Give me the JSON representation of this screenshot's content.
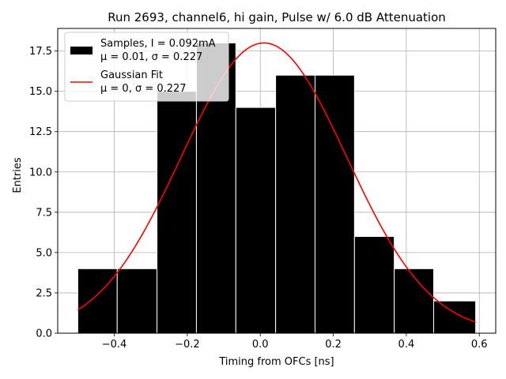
{
  "chart_data": {
    "type": "bar",
    "title": "Run 2693, channel6, hi gain, Pulse w/ 6.0 dB Attenuation",
    "xlabel": "Timing from OFCs [ns]",
    "ylabel": "Entries",
    "xlim": [
      -0.555,
      0.645
    ],
    "ylim": [
      0,
      18.9
    ],
    "grid": true,
    "x_ticks": [
      -0.4,
      -0.2,
      0.0,
      0.2,
      0.4,
      0.6
    ],
    "x_tick_labels": [
      "−0.4",
      "−0.2",
      "0.0",
      "0.2",
      "0.4",
      "0.6"
    ],
    "y_ticks": [
      0.0,
      2.5,
      5.0,
      7.5,
      10.0,
      12.5,
      15.0,
      17.5
    ],
    "y_tick_labels": [
      "0.0",
      "2.5",
      "5.0",
      "7.5",
      "10.0",
      "12.5",
      "15.0",
      "17.5"
    ],
    "bins": [
      {
        "left": -0.5,
        "right": -0.392,
        "count": 4
      },
      {
        "left": -0.392,
        "right": -0.283,
        "count": 4
      },
      {
        "left": -0.283,
        "right": -0.175,
        "count": 15
      },
      {
        "left": -0.175,
        "right": -0.067,
        "count": 18
      },
      {
        "left": -0.067,
        "right": 0.042,
        "count": 14
      },
      {
        "left": 0.042,
        "right": 0.15,
        "count": 16
      },
      {
        "left": 0.15,
        "right": 0.258,
        "count": 16
      },
      {
        "left": 0.258,
        "right": 0.367,
        "count": 6
      },
      {
        "left": 0.367,
        "right": 0.475,
        "count": 4
      },
      {
        "left": 0.475,
        "right": 0.59,
        "count": 2
      }
    ],
    "fit": {
      "amplitude": 18.0,
      "mean": 0.01,
      "sigma": 0.227,
      "x_range": [
        -0.5,
        0.59
      ]
    },
    "legend": {
      "placement": "top-left",
      "entries": [
        {
          "line1": "Samples, I = 0.092mA",
          "line2": "μ = 0.01, σ = 0.227",
          "color": "#000000",
          "kind": "patch"
        },
        {
          "line1": "Gaussian Fit",
          "line2": "μ = 0, σ = 0.227",
          "color": "#ff0000",
          "kind": "line"
        }
      ]
    },
    "colors": {
      "bar": "#000000",
      "bar_edge": "#ffffff",
      "fit": "#ff0000",
      "grid": "#b0b0b0"
    }
  }
}
